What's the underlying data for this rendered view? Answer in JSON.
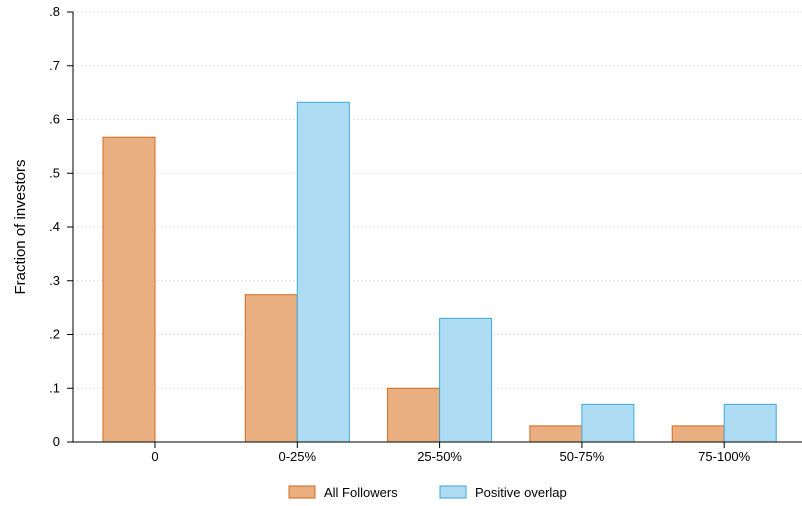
{
  "chart_data": {
    "type": "bar",
    "ylabel": "Fraction of investors",
    "xlabel": "",
    "categories": [
      "0",
      "0-25%",
      "25-50%",
      "50-75%",
      "75-100%"
    ],
    "ylim": [
      0,
      0.8
    ],
    "yticks": [
      0,
      0.1,
      0.2,
      0.3,
      0.4,
      0.5,
      0.6,
      0.7,
      0.8
    ],
    "ytick_labels": [
      "0",
      ".1",
      ".2",
      ".3",
      ".4",
      ".5",
      ".6",
      ".7",
      ".8"
    ],
    "grid": true,
    "legend": "bottom",
    "series": [
      {
        "name": "All Followers",
        "values": [
          0.567,
          0.274,
          0.1,
          0.03,
          0.03
        ],
        "fill": "#eaaf80",
        "stroke": "#d2691e"
      },
      {
        "name": "Positive overlap",
        "values": [
          0,
          0.632,
          0.23,
          0.07,
          0.07
        ],
        "fill": "#aedcf2",
        "stroke": "#3fa9dc"
      }
    ]
  }
}
